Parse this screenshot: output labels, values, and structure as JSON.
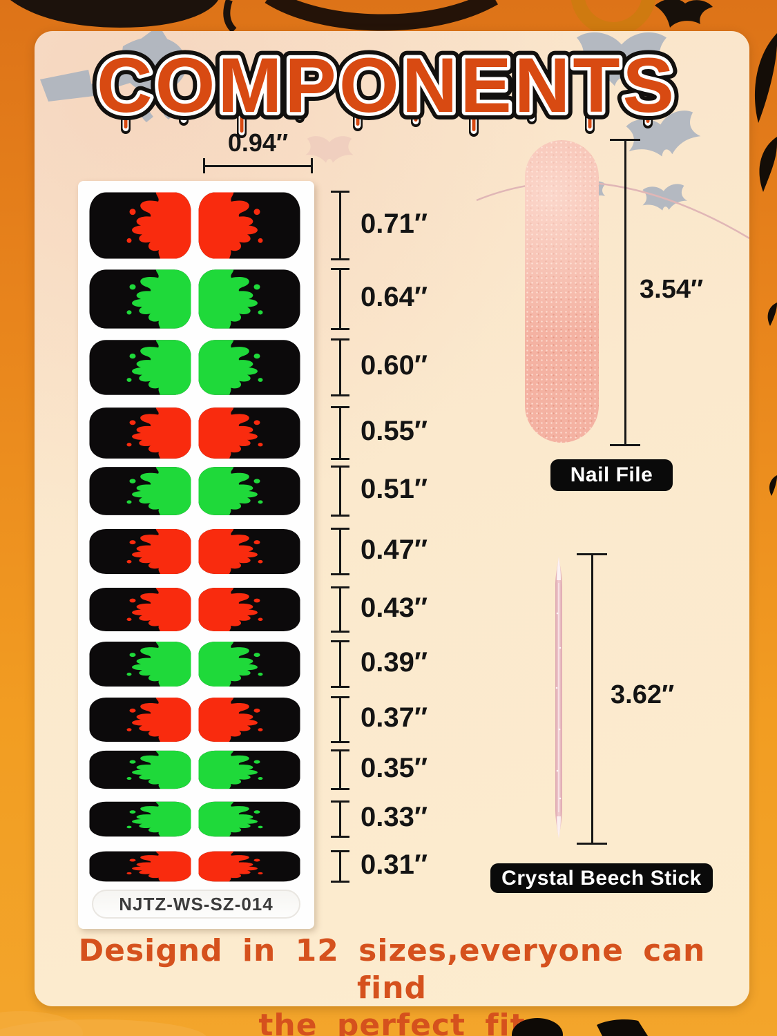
{
  "title": "COMPONENTS",
  "sheet": {
    "width_label": "0.94″",
    "product_code": "NJTZ-WS-SZ-014",
    "sizes": [
      {
        "label": "0.71″",
        "color": "red"
      },
      {
        "label": "0.64″",
        "color": "green"
      },
      {
        "label": "0.60″",
        "color": "green"
      },
      {
        "label": "0.55″",
        "color": "red"
      },
      {
        "label": "0.51″",
        "color": "green"
      },
      {
        "label": "0.47″",
        "color": "red"
      },
      {
        "label": "0.43″",
        "color": "red"
      },
      {
        "label": "0.39″",
        "color": "green"
      },
      {
        "label": "0.37″",
        "color": "red"
      },
      {
        "label": "0.35″",
        "color": "green"
      },
      {
        "label": "0.33″",
        "color": "green"
      },
      {
        "label": "0.31″",
        "color": "red"
      }
    ]
  },
  "tools": {
    "nail_file": {
      "label": "Nail File",
      "length_label": "3.54″"
    },
    "beech_stick": {
      "label": "Crystal Beech Stick",
      "length_label": "3.62″"
    }
  },
  "footer": {
    "line1": "Designd in 12 sizes,everyone can find",
    "line2": "the perfect fit"
  },
  "colors": {
    "drip_red": "#f92b0e",
    "drip_green": "#1fd93a",
    "nail_black": "#0c0a0b",
    "title_fill": "#d84a12",
    "card_bg": "#fbe9cd",
    "band_orange": "#ef9020",
    "file_pink": "#f4b2a2",
    "stick_pink": "#e9bcc3",
    "footer_orange": "#d5511d"
  },
  "decorations": {
    "theme": "halloween",
    "top_left": "witch-on-broom-silhouette",
    "top_right": "bat-silhouettes",
    "banner": "hanging-string-line"
  }
}
